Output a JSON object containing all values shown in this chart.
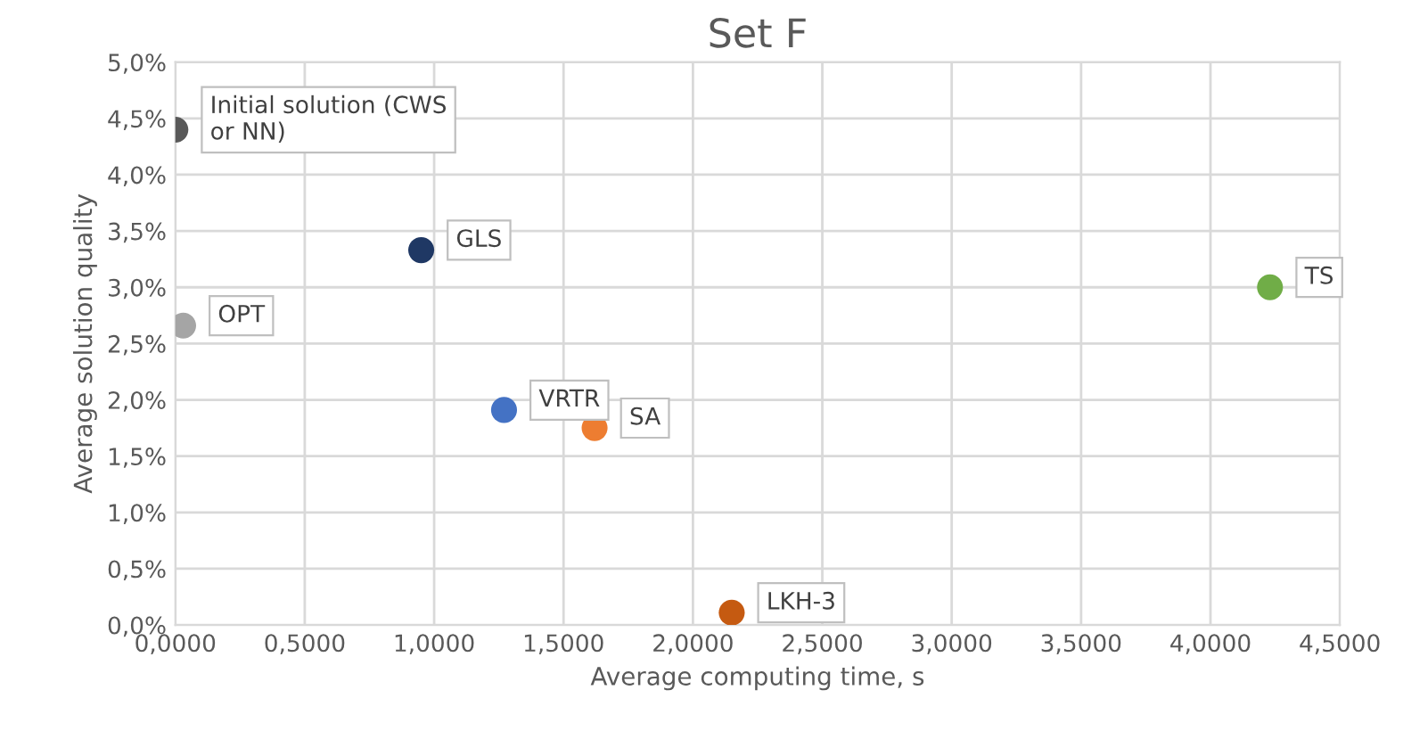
{
  "chart_data": {
    "type": "scatter",
    "title": "Set F",
    "xlabel": "Average computing time, s",
    "ylabel": "Average solution quality",
    "series": [
      {
        "name": "Initial solution (CWS\nor NN)",
        "color": "#595959",
        "x": [
          0.0
        ],
        "values": [
          4.4
        ]
      },
      {
        "name": "GLS",
        "color": "#1f3864",
        "x": [
          0.95
        ],
        "values": [
          3.33
        ]
      },
      {
        "name": "OPT",
        "color": "#a5a5a5",
        "x": [
          0.03
        ],
        "values": [
          2.66
        ]
      },
      {
        "name": "VRTR",
        "color": "#4472c4",
        "x": [
          1.27
        ],
        "values": [
          1.91
        ]
      },
      {
        "name": "SA",
        "color": "#ed7d31",
        "x": [
          1.62
        ],
        "values": [
          1.75
        ]
      },
      {
        "name": "LKH-3",
        "color": "#c55a11",
        "x": [
          2.15
        ],
        "values": [
          0.11
        ]
      },
      {
        "name": "TS",
        "color": "#70ad47",
        "x": [
          4.23
        ],
        "values": [
          3.0
        ]
      }
    ],
    "xlim": [
      0,
      4.5
    ],
    "ylim": [
      0,
      5
    ],
    "xticks": [
      {
        "value": 0,
        "label": "0,0000"
      },
      {
        "value": 0.5,
        "label": "0,5000"
      },
      {
        "value": 1,
        "label": "1,0000"
      },
      {
        "value": 1.5,
        "label": "1,5000"
      },
      {
        "value": 2,
        "label": "2,0000"
      },
      {
        "value": 2.5,
        "label": "2,5000"
      },
      {
        "value": 3,
        "label": "3,0000"
      },
      {
        "value": 3.5,
        "label": "3,5000"
      },
      {
        "value": 4,
        "label": "4,0000"
      },
      {
        "value": 4.5,
        "label": "4,5000"
      }
    ],
    "yticks": [
      {
        "value": 0,
        "label": "0,0%"
      },
      {
        "value": 0.5,
        "label": "0,5%"
      },
      {
        "value": 1,
        "label": "1,0%"
      },
      {
        "value": 1.5,
        "label": "1,5%"
      },
      {
        "value": 2,
        "label": "2,0%"
      },
      {
        "value": 2.5,
        "label": "2,5%"
      },
      {
        "value": 3,
        "label": "3,0%"
      },
      {
        "value": 3.5,
        "label": "3,5%"
      },
      {
        "value": 4,
        "label": "4,0%"
      },
      {
        "value": 4.5,
        "label": "4,5%"
      },
      {
        "value": 5,
        "label": "5,0%"
      }
    ],
    "grid": true,
    "marker": "circle",
    "legend": false
  }
}
